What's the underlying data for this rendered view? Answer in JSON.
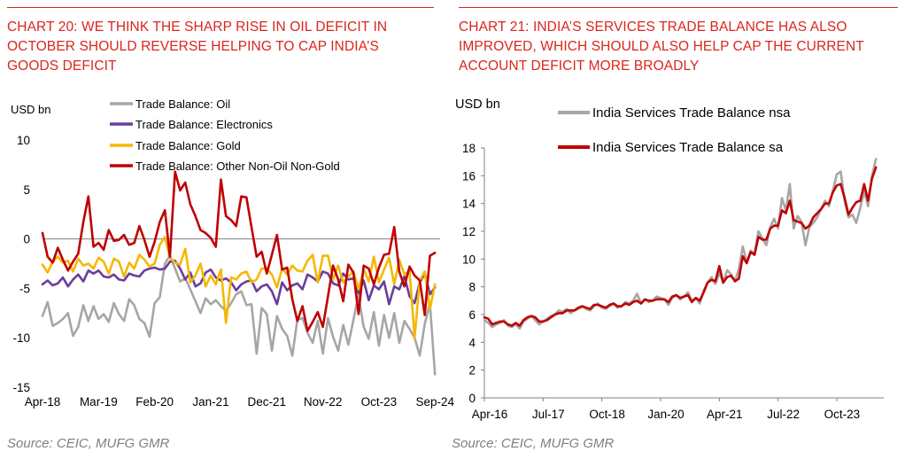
{
  "left": {
    "title": "CHART 20: WE THINK THE SHARP RISE IN OIL DEFICIT IN OCTOBER SHOULD REVERSE HELPING TO CAP INDIA’S GOODS DEFICIT",
    "unit": "USD bn",
    "source": "Source: CEIC, MUFG GMR"
  },
  "right": {
    "title": "CHART 21: INDIA’S SERVICES TRADE BALANCE HAS ALSO IMPROVED, WHICH SHOULD ALSO HELP CAP THE CURRENT ACCOUNT DEFICIT MORE BROADLY",
    "unit": "USD bn",
    "source": "Source: CEIC, MUFG GMR"
  },
  "chart_data": [
    {
      "type": "line",
      "title": "",
      "ylabel": "USD bn",
      "ylim": [
        -15,
        10
      ],
      "yticks": [
        10,
        5,
        0,
        -5,
        -10,
        -15
      ],
      "xlim": [
        0,
        78
      ],
      "xticks": [
        {
          "label": "Apr-18",
          "x": 0
        },
        {
          "label": "Mar-19",
          "x": 11
        },
        {
          "label": "Feb-20",
          "x": 22
        },
        {
          "label": "Jan-21",
          "x": 33
        },
        {
          "label": "Dec-21",
          "x": 44
        },
        {
          "label": "Nov-22",
          "x": 55
        },
        {
          "label": "Oct-23",
          "x": 66
        },
        {
          "label": "Sep-24",
          "x": 77
        }
      ],
      "legend_position": "top",
      "series": [
        {
          "name": "Trade Balance: Oil",
          "color": "#a6a6a6",
          "values": [
            -7.8,
            -6.4,
            -8.8,
            -8.5,
            -8.1,
            -7.5,
            -9.8,
            -8.9,
            -6.7,
            -8.3,
            -6.8,
            -8.1,
            -7.6,
            -8.4,
            -6.5,
            -7.6,
            -8.3,
            -6.1,
            -6.7,
            -8.1,
            -8.5,
            -9.9,
            -6.5,
            -5.9,
            -2.5,
            -1.7,
            -3.0,
            -4.3,
            -4.0,
            -5.1,
            -6.3,
            -7.5,
            -6.0,
            -6.6,
            -6.2,
            -6.8,
            -7.3,
            -6.5,
            -5.6,
            -5.3,
            -6.7,
            -6.6,
            -11.6,
            -7.0,
            -7.6,
            -11.3,
            -7.8,
            -9.1,
            -9.8,
            -11.8,
            -8.2,
            -8.0,
            -9.5,
            -10.5,
            -8.3,
            -11.6,
            -8.0,
            -9.9,
            -11.3,
            -8.7,
            -10.7,
            -8.2,
            -5.7,
            -8.9,
            -10.1,
            -7.4,
            -10.8,
            -7.7,
            -10.0,
            -7.5,
            -10.5,
            -8.3,
            -9.1,
            -10.0,
            -11.8,
            -8.6,
            -6.5,
            -13.7
          ]
        },
        {
          "name": "Trade Balance: Electronics",
          "color": "#6a3d9a",
          "values": [
            -4.6,
            -4.2,
            -4.7,
            -4.5,
            -3.9,
            -4.8,
            -4.1,
            -3.6,
            -4.3,
            -3.2,
            -3.5,
            -3.2,
            -3.8,
            -3.9,
            -3.6,
            -4.1,
            -4.2,
            -3.5,
            -3.7,
            -3.8,
            -3.2,
            -3.0,
            -2.9,
            -3.1,
            -3.0,
            -2.3,
            -2.2,
            -3.0,
            -4.1,
            -3.4,
            -4.8,
            -4.5,
            -3.4,
            -3.1,
            -3.9,
            -4.2,
            -4.0,
            -4.4,
            -5.2,
            -4.6,
            -4.3,
            -4.2,
            -5.3,
            -4.8,
            -4.6,
            -5.3,
            -6.6,
            -4.4,
            -5.2,
            -4.7,
            -4.5,
            -5.1,
            -3.6,
            -3.9,
            -4.3,
            -3.3,
            -3.5,
            -4.5,
            -4.7,
            -3.5,
            -4.1,
            -4.0,
            -5.5,
            -4.2,
            -6.2,
            -4.7,
            -5.1,
            -4.3,
            -6.6,
            -4.8,
            -5.1,
            -3.8,
            -5.8,
            -6.5,
            -4.4,
            -3.5,
            -5.6,
            -4.9
          ]
        },
        {
          "name": "Trade Balance: Gold",
          "color": "#f5b800",
          "values": [
            -2.6,
            -3.4,
            -2.3,
            -1.8,
            -2.4,
            -2.2,
            -3.3,
            -2.0,
            -2.7,
            -2.5,
            -3.0,
            -1.9,
            -2.3,
            -3.5,
            -2.0,
            -2.3,
            -3.8,
            -2.4,
            -3.0,
            -1.6,
            -2.1,
            -2.8,
            -2.5,
            -0.6,
            0.2,
            -1.9,
            -2.4,
            -2.6,
            -1.0,
            -4.4,
            -3.7,
            -2.5,
            -4.8,
            -3.7,
            -4.6,
            -3.1,
            -8.5,
            -3.9,
            -4.1,
            -3.5,
            -3.3,
            -4.4,
            -4.1,
            -3.0,
            -3.0,
            -3.6,
            -4.9,
            -3.0,
            -3.6,
            -2.7,
            -3.2,
            -3.3,
            -2.2,
            -1.6,
            -4.4,
            -1.7,
            -1.7,
            -4.1,
            -2.7,
            -4.4,
            -3.8,
            -3.3,
            -5.1,
            -3.1,
            -4.3,
            -1.8,
            -4.4,
            -3.1,
            -1.9,
            -4.6,
            -2.1,
            -3.6,
            -3.2,
            -10.0,
            -4.2,
            -3.3,
            -7.1,
            -4.6
          ]
        },
        {
          "name": "Trade Balance: Other Non-Oil Non-Gold",
          "color": "#c00000",
          "values": [
            0.6,
            -1.8,
            -2.4,
            -0.9,
            -2.1,
            -3.2,
            -2.3,
            -1.5,
            1.7,
            4.3,
            -0.8,
            -0.4,
            -1.1,
            0.9,
            -0.2,
            -0.1,
            0.4,
            -0.6,
            -0.4,
            1.3,
            -0.1,
            -1.8,
            -0.3,
            1.7,
            2.9,
            -1.8,
            6.8,
            4.9,
            5.7,
            3.5,
            2.3,
            0.9,
            0.6,
            0.1,
            -0.8,
            6.0,
            2.3,
            1.9,
            1.3,
            4.3,
            4.2,
            1.2,
            -1.8,
            -1.3,
            -3.5,
            -1.6,
            0.4,
            -3.1,
            -2.9,
            -6.1,
            -8.3,
            -6.8,
            -9.3,
            -8.4,
            -7.4,
            -8.9,
            -5.8,
            -2.7,
            -4.1,
            -6.3,
            -2.6,
            -3.4,
            -7.6,
            -2.7,
            -3.0,
            -4.6,
            -2.9,
            -1.6,
            -1.5,
            1.2,
            -3.3,
            -4.8,
            -2.8,
            -3.7,
            -4.2,
            -7.7,
            -1.7,
            -1.4
          ]
        }
      ]
    },
    {
      "type": "line",
      "title": "",
      "ylabel": "USD bn",
      "ylim": [
        0,
        18
      ],
      "yticks": [
        0,
        2,
        4,
        6,
        8,
        10,
        12,
        14,
        16,
        18
      ],
      "xlim": [
        0,
        102
      ],
      "xticks": [
        {
          "label": "Apr-16",
          "x": 0
        },
        {
          "label": "Jul-17",
          "x": 15
        },
        {
          "label": "Oct-18",
          "x": 30
        },
        {
          "label": "Jan-20",
          "x": 45
        },
        {
          "label": "Apr-21",
          "x": 60
        },
        {
          "label": "Jul-22",
          "x": 75
        },
        {
          "label": "Oct-23",
          "x": 90
        }
      ],
      "legend_position": "top",
      "series": [
        {
          "name": "India Services Trade Balance nsa",
          "color": "#a6a6a6",
          "values": [
            5.6,
            5.4,
            5.1,
            5.3,
            5.4,
            5.6,
            5.2,
            5.1,
            5.3,
            5.0,
            5.5,
            5.7,
            5.9,
            5.6,
            5.3,
            5.5,
            5.7,
            5.9,
            6.0,
            6.3,
            6.2,
            6.4,
            6.1,
            6.3,
            6.4,
            6.6,
            6.4,
            6.3,
            6.6,
            6.8,
            6.5,
            6.4,
            6.6,
            6.8,
            6.5,
            6.6,
            6.9,
            6.8,
            7.0,
            7.5,
            6.8,
            7.1,
            6.9,
            7.0,
            7.3,
            7.2,
            7.1,
            6.7,
            7.2,
            7.4,
            7.1,
            7.3,
            7.6,
            7.0,
            7.2,
            6.8,
            7.7,
            8.3,
            8.7,
            8.2,
            9.0,
            8.3,
            9.2,
            8.9,
            8.4,
            9.3,
            10.9,
            9.8,
            10.6,
            10.4,
            12.0,
            11.5,
            11.0,
            12.3,
            12.9,
            12.2,
            14.4,
            13.5,
            15.4,
            12.2,
            13.1,
            12.7,
            11.0,
            12.3,
            12.6,
            13.0,
            13.6,
            14.2,
            13.8,
            14.9,
            16.1,
            16.3,
            14.2,
            13.0,
            13.2,
            12.6,
            13.7,
            14.9,
            13.8,
            16.0,
            17.2
          ]
        },
        {
          "name": "India Services Trade Balance sa",
          "color": "#c00000",
          "values": [
            5.8,
            5.7,
            5.3,
            5.4,
            5.5,
            5.5,
            5.3,
            5.2,
            5.4,
            5.2,
            5.6,
            5.8,
            5.9,
            5.8,
            5.5,
            5.5,
            5.6,
            5.8,
            6.0,
            6.1,
            6.1,
            6.3,
            6.3,
            6.3,
            6.5,
            6.6,
            6.5,
            6.4,
            6.7,
            6.7,
            6.6,
            6.5,
            6.7,
            6.8,
            6.6,
            6.6,
            6.8,
            6.7,
            6.9,
            7.0,
            6.8,
            7.1,
            7.0,
            7.0,
            7.1,
            7.1,
            7.1,
            6.9,
            7.3,
            7.4,
            7.2,
            7.3,
            7.4,
            6.9,
            7.2,
            7.0,
            7.6,
            8.3,
            8.5,
            8.4,
            9.5,
            8.3,
            8.7,
            8.8,
            8.4,
            8.6,
            10.2,
            9.7,
            10.5,
            10.3,
            11.6,
            11.4,
            11.4,
            12.2,
            12.4,
            12.4,
            13.5,
            13.3,
            14.2,
            12.8,
            12.7,
            12.6,
            12.2,
            12.4,
            13.0,
            13.3,
            13.6,
            14.0,
            14.0,
            14.8,
            15.3,
            15.4,
            14.4,
            13.2,
            13.7,
            14.1,
            14.2,
            15.4,
            14.2,
            15.8,
            16.6
          ]
        }
      ]
    }
  ]
}
